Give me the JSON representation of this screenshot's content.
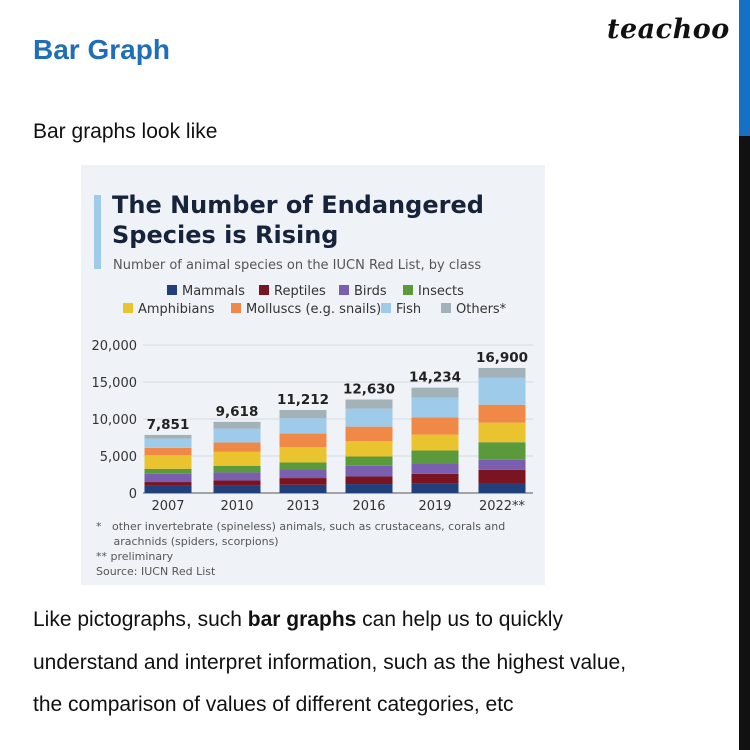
{
  "slide": {
    "title": "Bar Graph",
    "logo": "teachoo",
    "intro": "Bar graphs look like",
    "paragraph": {
      "line1_pre": "Like pictographs, such ",
      "line1_bold": "bar graphs",
      "line1_post": " can help us to quickly",
      "line2": "understand and interpret information, such as the highest value,",
      "line3": "the comparison of values of different categories, etc"
    },
    "colors": {
      "accent": "#1f6fb8",
      "strip_blue": "#1670c4",
      "strip_black": "#111111"
    }
  },
  "chart_data": {
    "type": "bar",
    "stacked": true,
    "title_line1": "The Number of Endangered",
    "title_line2": "Species is Rising",
    "subtitle": "Number of animal species on the IUCN Red List, by class",
    "categories": [
      "2007",
      "2010",
      "2013",
      "2016",
      "2019",
      "2022**"
    ],
    "totals": [
      "7,851",
      "9,618",
      "11,212",
      "12,630",
      "14,234",
      "16,900"
    ],
    "ylim": [
      0,
      20000
    ],
    "yticks": [
      "0",
      "5,000",
      "10,000",
      "15,000",
      "20,000"
    ],
    "ytick_values": [
      0,
      5000,
      10000,
      15000,
      20000
    ],
    "grid": true,
    "legend_position": "top",
    "series": [
      {
        "name": "Mammals",
        "color": "#213f7a",
        "values": [
          1000,
          1030,
          1120,
          1210,
          1260,
          1350
        ]
      },
      {
        "name": "Reptiles",
        "color": "#7a1420",
        "values": [
          480,
          670,
          900,
          1030,
          1340,
          1790
        ]
      },
      {
        "name": "Birds",
        "color": "#7a5fb0",
        "values": [
          1120,
          1080,
          1210,
          1440,
          1440,
          1340
        ]
      },
      {
        "name": "Insects",
        "color": "#5a9a3c",
        "values": [
          670,
          900,
          900,
          1250,
          1700,
          2380
        ]
      },
      {
        "name": "Amphibians",
        "color": "#eac42e",
        "values": [
          1830,
          1880,
          2060,
          2060,
          2150,
          2650
        ]
      },
      {
        "name": "Molluscs (e.g. snails)",
        "color": "#f08848",
        "values": [
          1000,
          1260,
          1840,
          1980,
          2330,
          2420
        ]
      },
      {
        "name": "Fish",
        "color": "#9ecbea",
        "values": [
          1250,
          1880,
          2060,
          2420,
          2650,
          3630
        ]
      },
      {
        "name": "Others*",
        "color": "#a3b1b8",
        "values": [
          501,
          918,
          1122,
          1240,
          1364,
          1340
        ]
      }
    ],
    "footnotes": [
      "*   other invertebrate (spineless) animals, such as crustaceans, corals and",
      "     arachnids (spiders, scorpions)",
      "** preliminary",
      "Source: IUCN Red List"
    ]
  }
}
